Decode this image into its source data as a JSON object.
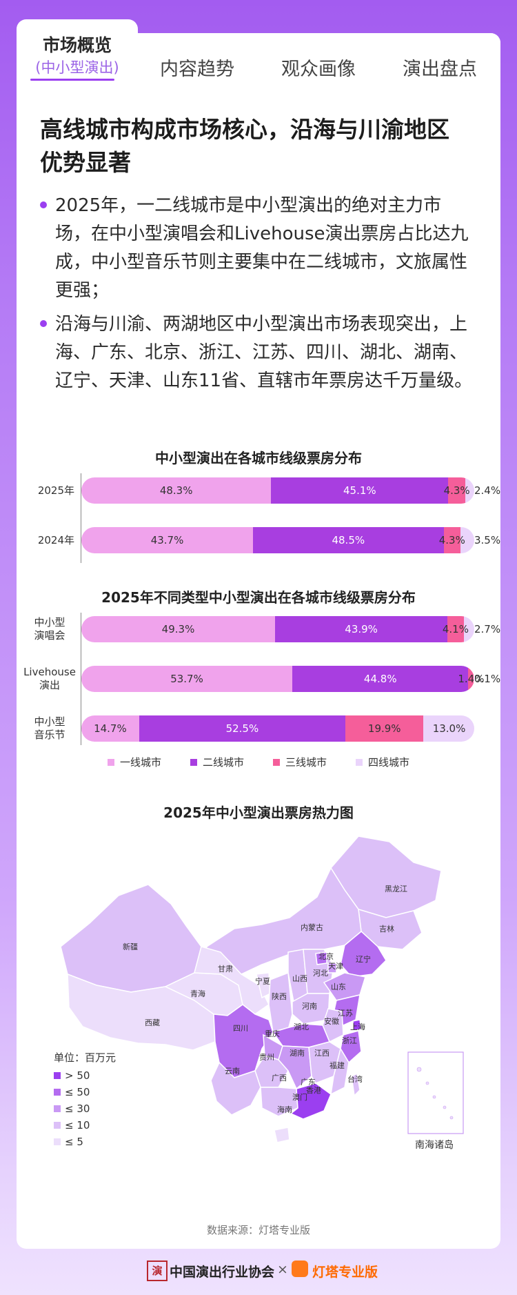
{
  "tabs": {
    "active_title": "市场概览",
    "active_subtitle": "(中小型演出)",
    "items": [
      "内容趋势",
      "观众画像",
      "演出盘点"
    ]
  },
  "headline": "高线城市构成市场核心，沿海与川渝地区优势显著",
  "bullets": [
    "2025年，一二线城市是中小型演出的绝对主力市场，在中小型演唱会和Livehouse演出票房占比达九成，中小型音乐节则主要集中在二线城市，文旅属性更强；",
    "沿海与川渝、两湖地区中小型演出市场表现突出，上海、广东、北京、浙江、江苏、四川、湖北、湖南、辽宁、天津、山东11省、直辖市年票房达千万量级。"
  ],
  "colors": {
    "tier1": "#f0a3ec",
    "tier2": "#a83ee0",
    "tier3": "#f55e9a",
    "tier4": "#ead4fb",
    "accent": "#9b3ff0"
  },
  "chart_data": [
    {
      "type": "bar",
      "stacked": true,
      "orientation": "horizontal",
      "title": "中小型演出在各城市线级票房分布",
      "categories": [
        "2025年",
        "2024年"
      ],
      "series": [
        {
          "name": "一线城市",
          "values": [
            48.3,
            43.7
          ],
          "labels": [
            "48.3%",
            "43.7%"
          ]
        },
        {
          "name": "二线城市",
          "values": [
            45.1,
            48.5
          ],
          "labels": [
            "45.1%",
            "48.5%"
          ]
        },
        {
          "name": "三线城市",
          "values": [
            4.3,
            4.3
          ],
          "labels": [
            "4.3%",
            "4.3%"
          ]
        },
        {
          "name": "四线城市",
          "values": [
            2.4,
            3.5
          ],
          "labels": [
            "2.4%",
            "3.5%"
          ]
        }
      ]
    },
    {
      "type": "bar",
      "stacked": true,
      "orientation": "horizontal",
      "title": "2025年不同类型中小型演出在各城市线级票房分布",
      "categories": [
        "中小型演唱会",
        "Livehouse演出",
        "中小型音乐节"
      ],
      "category_lines": [
        [
          "中小型",
          "演唱会"
        ],
        [
          "Livehouse",
          "演出"
        ],
        [
          "中小型",
          "音乐节"
        ]
      ],
      "series": [
        {
          "name": "一线城市",
          "values": [
            49.3,
            53.7,
            14.7
          ],
          "labels": [
            "49.3%",
            "53.7%",
            "14.7%"
          ]
        },
        {
          "name": "二线城市",
          "values": [
            43.9,
            44.8,
            52.5
          ],
          "labels": [
            "43.9%",
            "44.8%",
            "52.5%"
          ]
        },
        {
          "name": "三线城市",
          "values": [
            4.1,
            1.4,
            19.9
          ],
          "labels": [
            "4.1%",
            "1.4%",
            "19.9%"
          ]
        },
        {
          "name": "四线城市",
          "values": [
            2.7,
            0.1,
            13.0
          ],
          "labels": [
            "2.7%",
            "0.1%",
            "13.0%"
          ]
        }
      ],
      "legend": [
        "一线城市",
        "二线城市",
        "三线城市",
        "四线城市"
      ]
    },
    {
      "type": "heatmap",
      "title": "2025年中小型演出票房热力图",
      "unit_label": "单位：百万元",
      "scale": [
        {
          "label": "> 50",
          "color": "#9b3ff0"
        },
        {
          "label": "≤ 50",
          "color": "#b46cf0"
        },
        {
          "label": "≤ 30",
          "color": "#c999f4"
        },
        {
          "label": "≤ 10",
          "color": "#dcc0f8"
        },
        {
          "label": "≤ 5",
          "color": "#ecdefb"
        }
      ],
      "regions": [
        "黑龙江",
        "吉林",
        "辽宁",
        "内蒙古",
        "新疆",
        "北京",
        "天津",
        "河北",
        "山西",
        "甘肃",
        "宁夏",
        "青海",
        "陕西",
        "山东",
        "河南",
        "江苏",
        "安徽",
        "上海",
        "西藏",
        "四川",
        "重庆",
        "湖北",
        "浙江",
        "贵州",
        "湖南",
        "江西",
        "云南",
        "广西",
        "广东",
        "福建",
        "台湾",
        "香港",
        "澳门",
        "海南"
      ],
      "inset_label": "南海诸岛"
    }
  ],
  "source": "数据来源：灯塔专业版",
  "footer": {
    "seal_char": "演",
    "org": "中国演出行业协会",
    "x": "×",
    "brand": "灯塔专业版"
  }
}
